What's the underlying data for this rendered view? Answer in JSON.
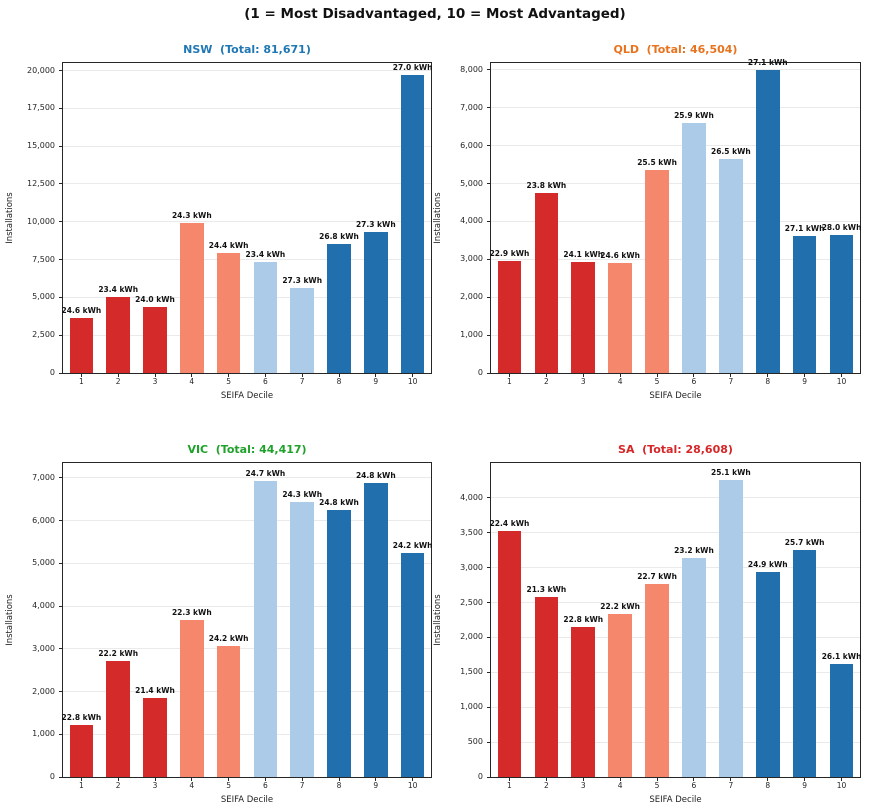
{
  "figure_title": "(1 = Most Disadvantaged, 10 = Most Advantaged)",
  "decile_palette": [
    "#d42a2a",
    "#d42a2a",
    "#d42a2a",
    "#f4876c",
    "#f4876c",
    "#abcbe8",
    "#abcbe8",
    "#2170ad",
    "#2170ad",
    "#2170ad"
  ],
  "chart_data": [
    {
      "type": "bar",
      "state": "NSW",
      "title": "NSW  (Total: 81,671)",
      "title_color": "#1f77b4",
      "total": "81,671",
      "xlabel": "SEIFA Decile",
      "ylabel": "Installations",
      "categories": [
        "1",
        "2",
        "3",
        "4",
        "5",
        "6",
        "7",
        "8",
        "9",
        "10"
      ],
      "values": [
        3650,
        5000,
        4350,
        9900,
        7950,
        7350,
        5600,
        8550,
        9300,
        19700
      ],
      "bar_labels": [
        "24.6 kWh",
        "23.4 kWh",
        "24.0 kWh",
        "24.3 kWh",
        "24.4 kWh",
        "23.4 kWh",
        "27.3 kWh",
        "26.8 kWh",
        "27.3 kWh",
        "27.0 kWh"
      ],
      "yticks": [
        0,
        2500,
        5000,
        7500,
        10000,
        12500,
        15000,
        17500,
        20000
      ],
      "ytick_labels": [
        "0",
        "2,500",
        "5,000",
        "7,500",
        "10,000",
        "12,500",
        "15,000",
        "17,500",
        "20,000"
      ],
      "ylim": [
        0,
        20500
      ],
      "grid": true,
      "legend": "none"
    },
    {
      "type": "bar",
      "state": "QLD",
      "title": "QLD  (Total: 46,504)",
      "title_color": "#e8731e",
      "total": "46,504",
      "xlabel": "SEIFA Decile",
      "ylabel": "Installations",
      "categories": [
        "1",
        "2",
        "3",
        "4",
        "5",
        "6",
        "7",
        "8",
        "9",
        "10"
      ],
      "values": [
        2950,
        4750,
        2930,
        2890,
        5350,
        6600,
        5650,
        8000,
        3620,
        3630
      ],
      "bar_labels": [
        "22.9 kWh",
        "23.8 kWh",
        "24.1 kWh",
        "24.6 kWh",
        "25.5 kWh",
        "25.9 kWh",
        "26.5 kWh",
        "27.1 kWh",
        "27.1 kWh",
        "28.0 kWh"
      ],
      "yticks": [
        0,
        1000,
        2000,
        3000,
        4000,
        5000,
        6000,
        7000,
        8000
      ],
      "ytick_labels": [
        "0",
        "1,000",
        "2,000",
        "3,000",
        "4,000",
        "5,000",
        "6,000",
        "7,000",
        "8,000"
      ],
      "ylim": [
        0,
        8180
      ],
      "grid": true,
      "legend": "none"
    },
    {
      "type": "bar",
      "state": "VIC",
      "title": "VIC  (Total: 44,417)",
      "title_color": "#1fa12b",
      "total": "44,417",
      "xlabel": "SEIFA Decile",
      "ylabel": "Installations",
      "categories": [
        "1",
        "2",
        "3",
        "4",
        "5",
        "6",
        "7",
        "8",
        "9",
        "10"
      ],
      "values": [
        1210,
        2720,
        1860,
        3680,
        3060,
        6930,
        6430,
        6250,
        6890,
        5250
      ],
      "bar_labels": [
        "22.8 kWh",
        "22.2 kWh",
        "21.4 kWh",
        "22.3 kWh",
        "24.2 kWh",
        "24.7 kWh",
        "24.3 kWh",
        "24.8 kWh",
        "24.8 kWh",
        "24.2 kWh"
      ],
      "yticks": [
        0,
        1000,
        2000,
        3000,
        4000,
        5000,
        6000,
        7000
      ],
      "ytick_labels": [
        "0",
        "1,000",
        "2,000",
        "3,000",
        "4,000",
        "5,000",
        "6,000",
        "7,000"
      ],
      "ylim": [
        0,
        7350
      ],
      "grid": true,
      "legend": "none"
    },
    {
      "type": "bar",
      "state": "SA",
      "title": "SA  (Total: 28,608)",
      "title_color": "#d62728",
      "total": "28,608",
      "xlabel": "SEIFA Decile",
      "ylabel": "Installations",
      "categories": [
        "1",
        "2",
        "3",
        "4",
        "5",
        "6",
        "7",
        "8",
        "9",
        "10"
      ],
      "values": [
        3520,
        2580,
        2150,
        2330,
        2760,
        3140,
        4250,
        2940,
        3260,
        1620
      ],
      "bar_labels": [
        "22.4 kWh",
        "21.3 kWh",
        "22.8 kWh",
        "22.2 kWh",
        "22.7 kWh",
        "23.2 kWh",
        "25.1 kWh",
        "24.9 kWh",
        "25.7 kWh",
        "26.1 kWh"
      ],
      "yticks": [
        0,
        500,
        1000,
        1500,
        2000,
        2500,
        3000,
        3500,
        4000
      ],
      "ytick_labels": [
        "0",
        "500",
        "1,000",
        "1,500",
        "2,000",
        "2,500",
        "3,000",
        "3,500",
        "4,000"
      ],
      "ylim": [
        0,
        4500
      ],
      "grid": true,
      "legend": "none"
    }
  ]
}
